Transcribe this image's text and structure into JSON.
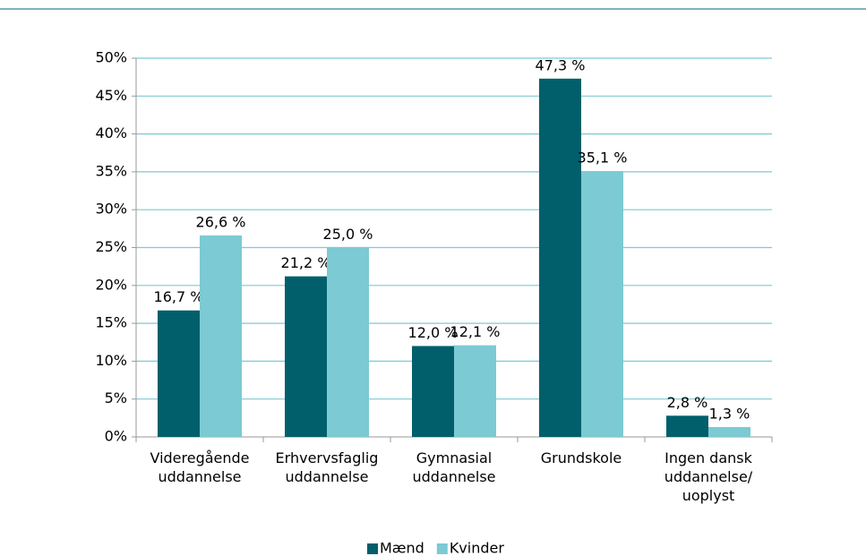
{
  "chart_data": {
    "type": "bar",
    "categories": [
      "Videregående\nuddannelse",
      "Erhvervsfaglig\nuddannelse",
      "Gymnasial\nuddannelse",
      "Grundskole",
      "Ingen dansk\nuddannelse/\nuoplyst"
    ],
    "series": [
      {
        "name": "Mænd",
        "color": "#005f6b",
        "values": [
          16.7,
          21.2,
          12.0,
          47.3,
          2.8
        ],
        "value_labels": [
          "16,7 %",
          "21,2 %",
          "12,0 %",
          "47,3 %",
          "2,8 %"
        ]
      },
      {
        "name": "Kvinder",
        "color": "#7ccad3",
        "values": [
          26.6,
          25.0,
          12.1,
          35.1,
          1.3
        ],
        "value_labels": [
          "26,6 %",
          "25,0 %",
          "12,1 %",
          "35,1 %",
          "1,3 %"
        ]
      }
    ],
    "ylim": [
      0,
      50
    ],
    "yticks": [
      {
        "value": 0,
        "label": "0%"
      },
      {
        "value": 5,
        "label": "5%"
      },
      {
        "value": 10,
        "label": "10%"
      },
      {
        "value": 15,
        "label": "15%"
      },
      {
        "value": 20,
        "label": "20%"
      },
      {
        "value": 25,
        "label": "25%"
      },
      {
        "value": 30,
        "label": "30%"
      },
      {
        "value": 35,
        "label": "35%"
      },
      {
        "value": 40,
        "label": "40%"
      },
      {
        "value": 45,
        "label": "45%"
      },
      {
        "value": 50,
        "label": "50%"
      }
    ],
    "grid": true,
    "legend": "bottom"
  }
}
